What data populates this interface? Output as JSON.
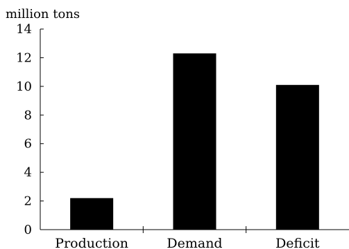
{
  "chart_data": {
    "type": "bar",
    "title": "",
    "xlabel": "",
    "ylabel": "million tons",
    "ylim": [
      0,
      14
    ],
    "yticks": [
      "0",
      "2",
      "4",
      "6",
      "8",
      "10",
      "12",
      "14"
    ],
    "categories": [
      "Production",
      "Demand",
      "Deficit"
    ],
    "values": [
      2.2,
      12.3,
      10.1
    ],
    "bar_color": "#000000",
    "grid": false,
    "legend": "none"
  }
}
